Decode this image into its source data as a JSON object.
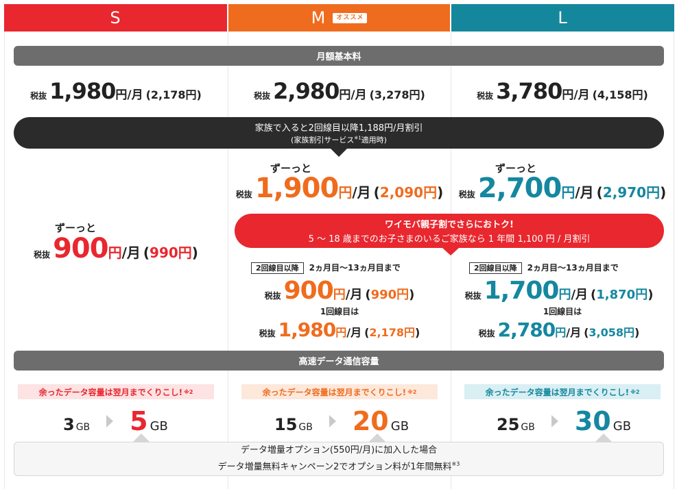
{
  "plans": [
    {
      "id": "S",
      "color": "#e8272f"
    },
    {
      "id": "M",
      "color": "#ef6c1e",
      "recommend": "オススメ"
    },
    {
      "id": "L",
      "color": "#15879c"
    }
  ],
  "sections": {
    "monthly": "月額基本料",
    "data": "高速データ通信容量"
  },
  "labels": {
    "tax_excl": "税抜",
    "yen_month": "円/月",
    "yen": "円",
    "zutto": "ずーっと",
    "second_line": "2回線目以降",
    "period": "2ヵ月目〜13ヵ月目まで",
    "first_line": "1回線目は"
  },
  "base_prices": [
    {
      "price": "1,980",
      "incl": "2,178"
    },
    {
      "price": "2,980",
      "incl": "3,278"
    },
    {
      "price": "3,780",
      "incl": "4,158"
    }
  ],
  "family": {
    "line1": "家族で入ると2回線目以降1,188円/月割引",
    "line2_a": "(家族割引サービス",
    "line2_note": "※1",
    "line2_b": "適用時)"
  },
  "family_prices": [
    {
      "price": "900",
      "incl": "990"
    },
    {
      "price": "1,900",
      "incl": "2,090"
    },
    {
      "price": "2,700",
      "incl": "2,970"
    }
  ],
  "oyako": {
    "line1": "ワイモバ親子割でさらにおトク!",
    "line2": "5 〜 18 歳までのお子さまのいるご家族なら 1 年間 1,100 円 / 月割引"
  },
  "oyako_prices": [
    {
      "second": "900",
      "second_incl": "990",
      "first": "1,980",
      "first_incl": "2,178"
    },
    {
      "second": "1,700",
      "second_incl": "1,870",
      "first": "2,780",
      "first_incl": "3,058"
    }
  ],
  "carryover": {
    "text": "余ったデータ容量は翌月までくりこし!",
    "note": "※2"
  },
  "data_caps": [
    {
      "from": "3",
      "to": "5"
    },
    {
      "from": "15",
      "to": "20"
    },
    {
      "from": "25",
      "to": "30"
    }
  ],
  "gb": "GB",
  "footnote": {
    "line1": "データ増量オプション(550円/月)に加入した場合",
    "line2": "データ増量無料キャンペーン2でオプション料が1年間無料",
    "note": "※3"
  }
}
